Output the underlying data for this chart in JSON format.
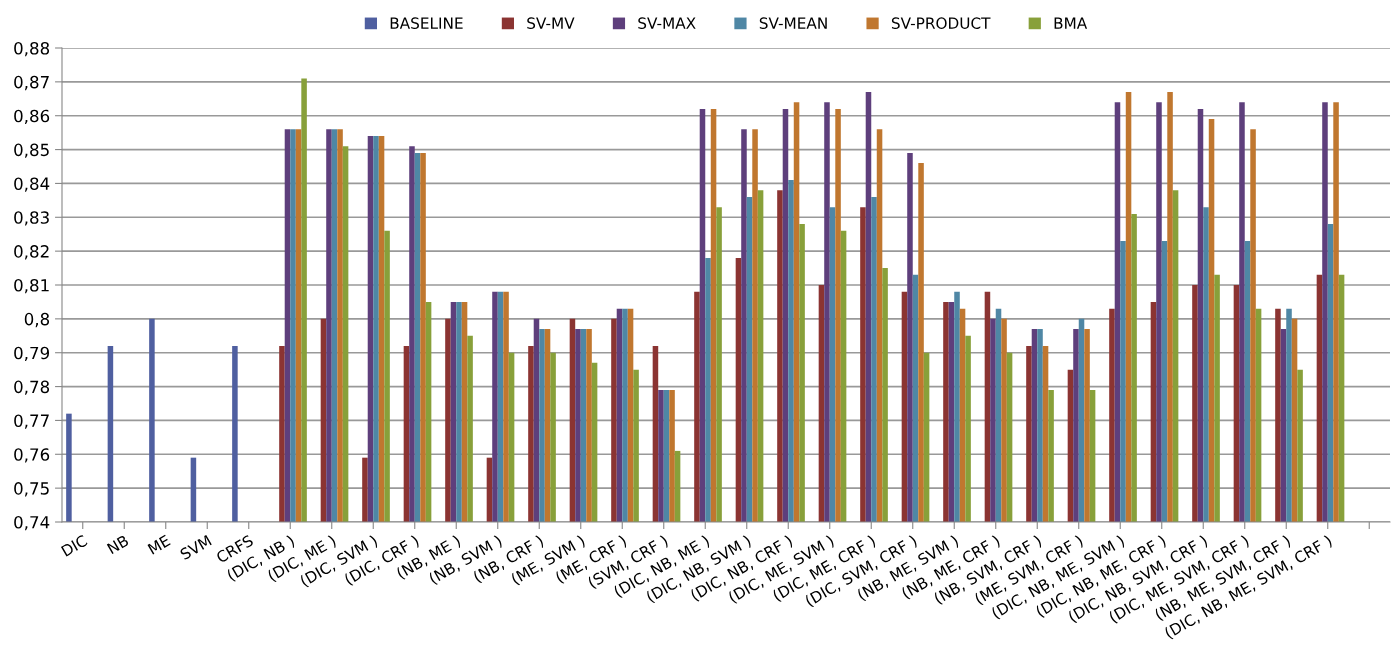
{
  "chart_data": {
    "type": "bar",
    "categories": [
      "DIC",
      "NB",
      "ME",
      "SVM",
      "CRFS",
      "(DIC, NB )",
      "(DIC, ME )",
      "(DIC, SVM )",
      "(DIC, CRF )",
      "(NB, ME )",
      "(NB, SVM )",
      "(NB, CRF )",
      "(ME, SVM )",
      "(ME, CRF )",
      "(SVM, CRF )",
      "(DIC, NB, ME )",
      "(DIC, NB, SVM )",
      "(DIC, NB, CRF )",
      "(DIC, ME, SVM )",
      "(DIC, ME, CRF )",
      "(DIC, SVM, CRF )",
      "(NB, ME, SVM )",
      "(NB, ME, CRF )",
      "(NB, SVM, CRF )",
      "(ME, SVM, CRF )",
      "(DIC, NB, ME, SVM )",
      "(DIC, NB, ME, CRF )",
      "(DIC, NB, SVM, CRF )",
      "(DIC, ME, SVM, CRF )",
      "(NB, ME, SVM, CRF )",
      "(DIC, NB, ME, SVM, CRF )",
      null
    ],
    "series": [
      {
        "name": "BASELINE",
        "color": "#4f5fa0",
        "values": [
          0.772,
          0.792,
          0.8,
          0.759,
          0.792,
          null,
          null,
          null,
          null,
          null,
          null,
          null,
          null,
          null,
          null,
          null,
          null,
          null,
          null,
          null,
          null,
          null,
          null,
          null,
          null,
          null,
          null,
          null,
          null,
          null,
          null,
          null
        ]
      },
      {
        "name": "SV-MV",
        "color": "#8b3432",
        "values": [
          null,
          null,
          null,
          null,
          null,
          0.792,
          0.8,
          0.759,
          0.792,
          0.8,
          0.759,
          0.792,
          0.8,
          0.8,
          0.792,
          0.808,
          0.818,
          0.838,
          0.81,
          0.833,
          0.808,
          0.805,
          0.808,
          0.792,
          0.785,
          0.803,
          0.805,
          0.81,
          0.81,
          0.803,
          0.813,
          null
        ]
      },
      {
        "name": "SV-MAX",
        "color": "#5e3f7c",
        "values": [
          null,
          null,
          null,
          null,
          null,
          0.856,
          0.856,
          0.854,
          0.851,
          0.805,
          0.808,
          0.8,
          0.797,
          0.803,
          0.779,
          0.862,
          0.856,
          0.862,
          0.864,
          0.867,
          0.849,
          0.805,
          0.8,
          0.797,
          0.797,
          0.864,
          0.864,
          0.862,
          0.864,
          0.797,
          0.864,
          null
        ]
      },
      {
        "name": "SV-MEAN",
        "color": "#4f87a5",
        "values": [
          null,
          null,
          null,
          null,
          null,
          0.856,
          0.856,
          0.854,
          0.849,
          0.805,
          0.808,
          0.797,
          0.797,
          0.803,
          0.779,
          0.818,
          0.836,
          0.841,
          0.833,
          0.836,
          0.813,
          0.808,
          0.803,
          0.797,
          0.8,
          0.823,
          0.823,
          0.833,
          0.823,
          0.803,
          0.828,
          null
        ]
      },
      {
        "name": "SV-PRODUCT",
        "color": "#c0772f",
        "values": [
          null,
          null,
          null,
          null,
          null,
          0.856,
          0.856,
          0.854,
          0.849,
          0.805,
          0.808,
          0.797,
          0.797,
          0.803,
          0.779,
          0.862,
          0.856,
          0.864,
          0.862,
          0.856,
          0.846,
          0.803,
          0.8,
          0.792,
          0.797,
          0.867,
          0.867,
          0.859,
          0.856,
          0.8,
          0.864,
          null
        ]
      },
      {
        "name": "BMA",
        "color": "#88a03a",
        "values": [
          null,
          null,
          null,
          null,
          null,
          0.871,
          0.851,
          0.826,
          0.805,
          0.795,
          0.79,
          0.79,
          0.787,
          0.785,
          0.761,
          0.833,
          0.838,
          0.828,
          0.826,
          0.815,
          0.79,
          0.795,
          0.79,
          0.779,
          0.779,
          0.831,
          0.838,
          0.813,
          0.803,
          0.785,
          0.813,
          null
        ]
      }
    ],
    "ylim": [
      0.74,
      0.88
    ],
    "yticks": [
      {
        "value": 0.74,
        "label": "0,74"
      },
      {
        "value": 0.75,
        "label": "0,75"
      },
      {
        "value": 0.76,
        "label": "0,76"
      },
      {
        "value": 0.77,
        "label": "0,77"
      },
      {
        "value": 0.78,
        "label": "0,78"
      },
      {
        "value": 0.79,
        "label": "0,79"
      },
      {
        "value": 0.8,
        "label": "0,8"
      },
      {
        "value": 0.81,
        "label": "0,81"
      },
      {
        "value": 0.82,
        "label": "0,82"
      },
      {
        "value": 0.83,
        "label": "0,83"
      },
      {
        "value": 0.84,
        "label": "0,84"
      },
      {
        "value": 0.85,
        "label": "0,85"
      },
      {
        "value": 0.86,
        "label": "0,86"
      },
      {
        "value": 0.87,
        "label": "0,87"
      },
      {
        "value": 0.88,
        "label": "0,88"
      }
    ],
    "grid": "y",
    "legend": "top"
  }
}
